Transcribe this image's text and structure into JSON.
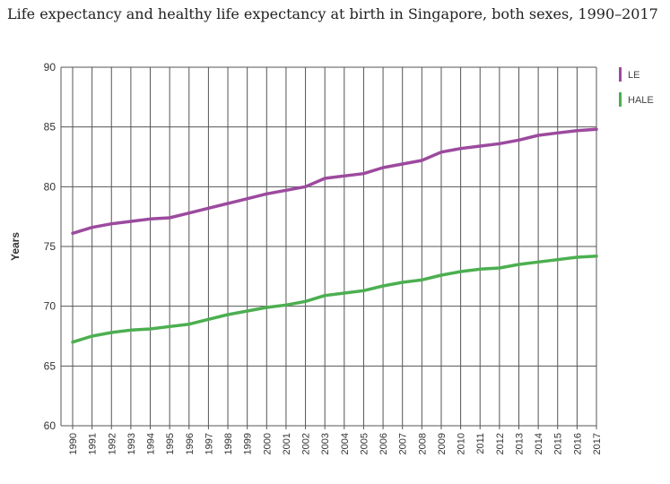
{
  "chart_data": {
    "type": "line",
    "title": "Life expectancy and healthy life expectancy at birth in Singapore, both sexes, 1990–2017",
    "xlabel": "",
    "ylabel": "Years",
    "ylim": [
      60,
      90
    ],
    "yticks": [
      60,
      65,
      70,
      75,
      80,
      85,
      90
    ],
    "grid": true,
    "legend_position": "top-right",
    "x": [
      "1990",
      "1991",
      "1992",
      "1993",
      "1994",
      "1995",
      "1996",
      "1997",
      "1998",
      "1999",
      "2000",
      "2001",
      "2002",
      "2003",
      "2004",
      "2005",
      "2006",
      "2007",
      "2008",
      "2009",
      "2010",
      "2011",
      "2012",
      "2013",
      "2014",
      "2015",
      "2016",
      "2017"
    ],
    "series": [
      {
        "name": "LE",
        "color": "#9c4a9e",
        "values": [
          76.1,
          76.6,
          76.9,
          77.1,
          77.3,
          77.4,
          77.8,
          78.2,
          78.6,
          79.0,
          79.4,
          79.7,
          80.0,
          80.7,
          80.9,
          81.1,
          81.6,
          81.9,
          82.2,
          82.9,
          83.2,
          83.4,
          83.6,
          83.9,
          84.3,
          84.5,
          84.7,
          84.8
        ]
      },
      {
        "name": "HALE",
        "color": "#4caf50",
        "values": [
          67.0,
          67.5,
          67.8,
          68.0,
          68.1,
          68.3,
          68.5,
          68.9,
          69.3,
          69.6,
          69.9,
          70.1,
          70.4,
          70.9,
          71.1,
          71.3,
          71.7,
          72.0,
          72.2,
          72.6,
          72.9,
          73.1,
          73.2,
          73.5,
          73.7,
          73.9,
          74.1,
          74.2
        ]
      }
    ]
  }
}
